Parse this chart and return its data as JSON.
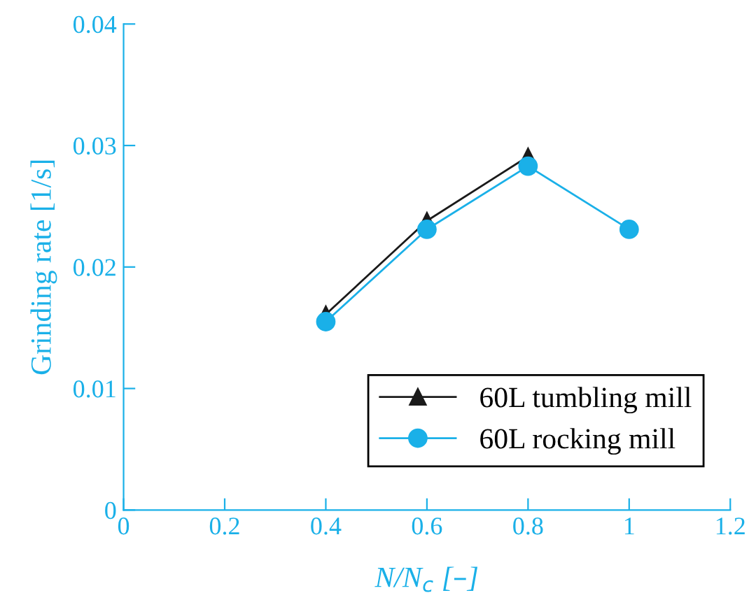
{
  "chart_data": {
    "type": "line",
    "xlabel": "N/N$_{c}$ [–]",
    "ylabel": "Grinding rate [1/s]",
    "xlim": [
      0,
      1.2
    ],
    "xticks": [
      0,
      0.2,
      0.4,
      0.6,
      0.8,
      1,
      1.2
    ],
    "ylim": [
      0,
      0.04
    ],
    "yticks": [
      0,
      0.01,
      0.02,
      0.03,
      0.04
    ],
    "grid": false,
    "legend": "bottom right",
    "series": [
      {
        "name": "60L tumbling mill",
        "color": "#1a1a1a",
        "marker": "triangle",
        "x": [
          0.4,
          0.6,
          0.8
        ],
        "values": [
          0.0161,
          0.0238,
          0.0291
        ]
      },
      {
        "name": "60L rocking mill",
        "color": "#1ab0e8",
        "marker": "circle",
        "x": [
          0.4,
          0.6,
          0.8,
          1.0
        ],
        "values": [
          0.0155,
          0.0231,
          0.0283,
          0.0231
        ]
      }
    ]
  }
}
